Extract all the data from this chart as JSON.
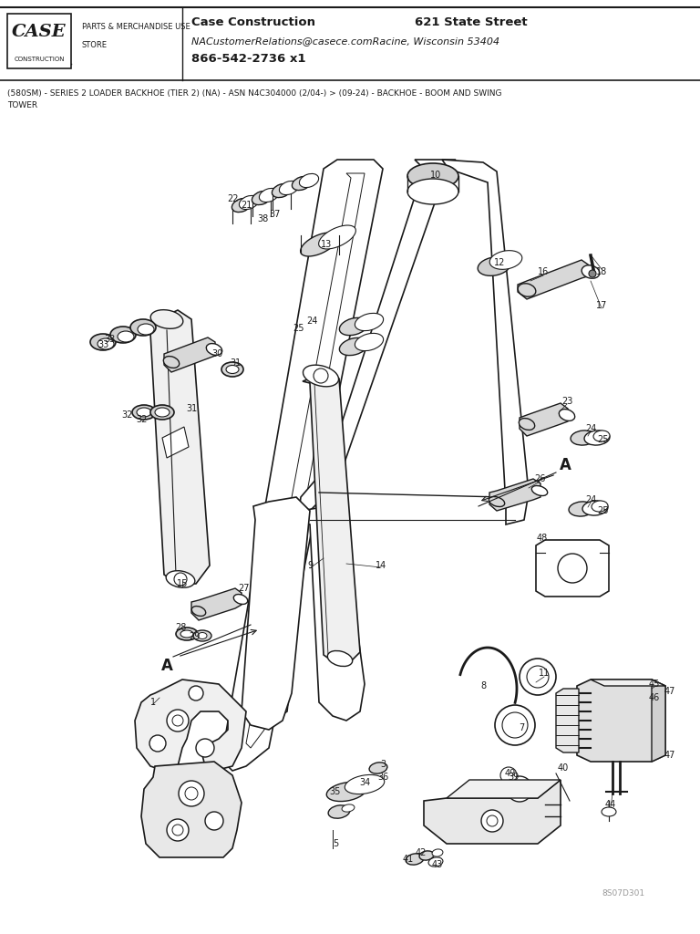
{
  "title_company": "Case Construction",
  "title_address1": "621 State Street",
  "title_address2": "NACustomerRelations@casece.comRacine, Wisconsin 53404",
  "title_address3": "866-542-2736 x1",
  "parts_label1": "PARTS & MERCHANDISE USE",
  "parts_label2": "STORE",
  "subtitle": "(580SM) - SERIES 2 LOADER BACKHOE (TIER 2) (NA) - ASN N4C304000 (2/04-) > (09-24) - BACKHOE - BOOM AND SWING TOWER",
  "diagram_code": "8S07D301",
  "bg_color": "#ffffff",
  "line_color": "#1a1a1a"
}
